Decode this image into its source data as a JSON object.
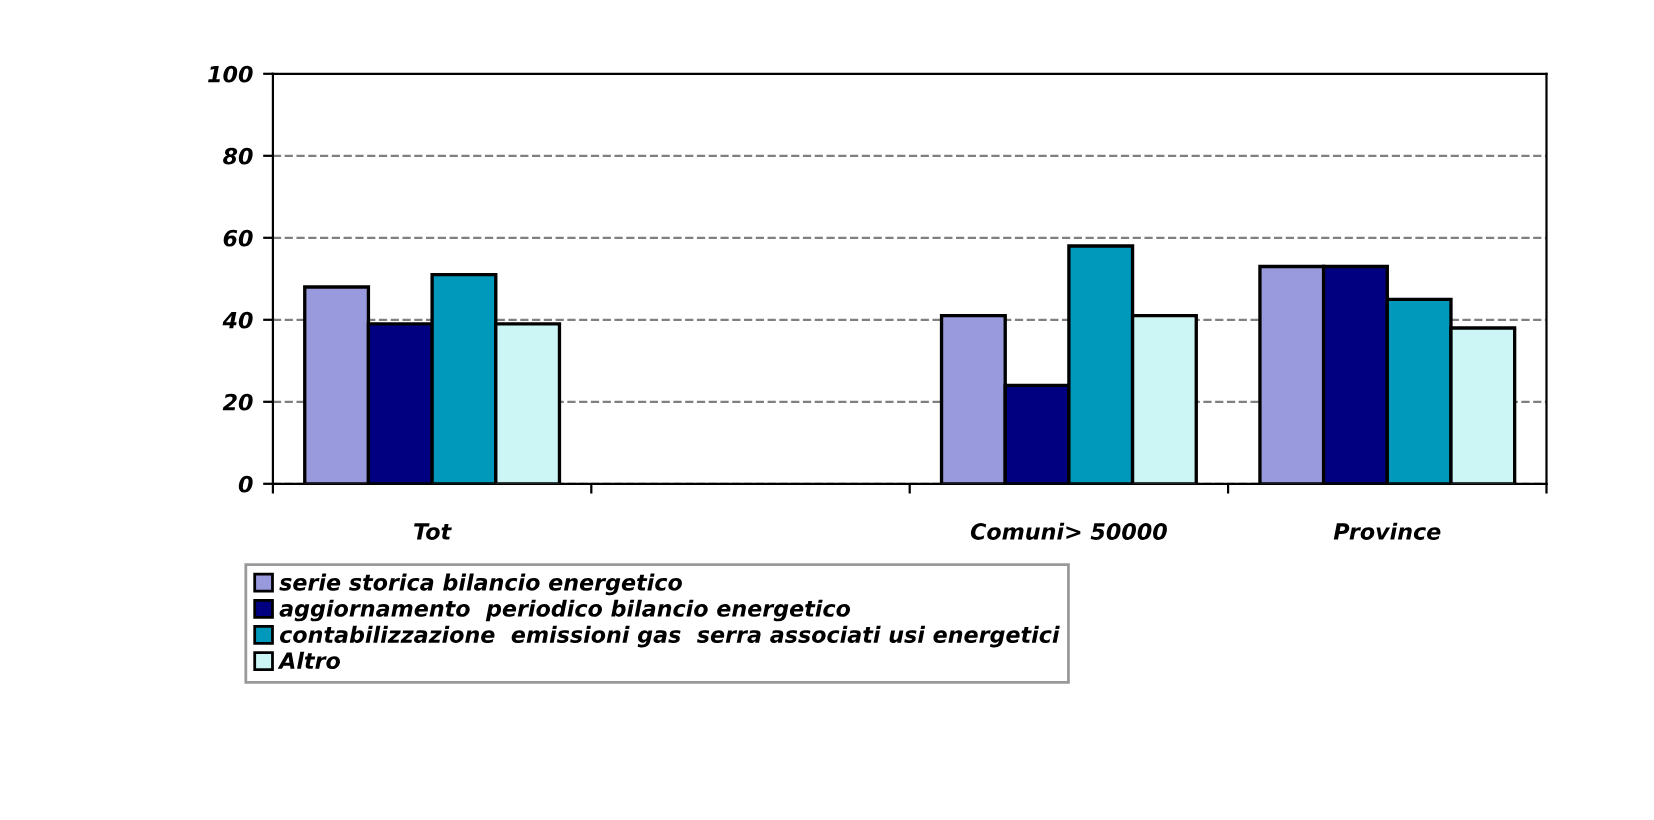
{
  "chart_data": {
    "type": "bar",
    "categories": [
      "Tot",
      null,
      "Comuni> 50000",
      "Province"
    ],
    "series": [
      {
        "name": "serie storica bilancio energetico",
        "color": "#9999dd",
        "values": [
          48,
          null,
          41,
          53
        ]
      },
      {
        "name": "aggiornamento  periodico bilancio energetico",
        "color": "#000080",
        "values": [
          39,
          null,
          24,
          53
        ]
      },
      {
        "name": "contabilizzazione  emissioni gas  serra associati usi energetici",
        "color": "#0099bb",
        "values": [
          51,
          null,
          58,
          45
        ]
      },
      {
        "name": "Altro",
        "color": "#ccf5f5",
        "values": [
          39,
          null,
          41,
          38
        ]
      }
    ],
    "ylim": [
      0,
      100
    ],
    "yticks": [
      0,
      20,
      40,
      60,
      80,
      100
    ],
    "grid": "y",
    "legend": "bottom"
  }
}
